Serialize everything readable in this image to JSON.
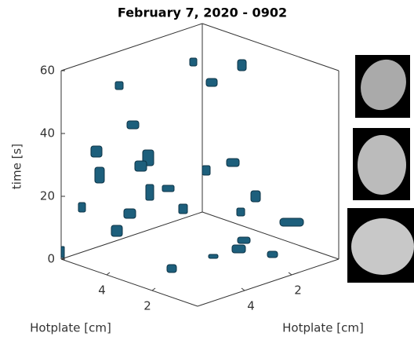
{
  "chart_data": {
    "type": "scatter3d",
    "title": "February 7, 2020 - 0902",
    "xlabel": "Hotplate [cm]",
    "ylabel": "Hotplate [cm]",
    "zlabel": "time [s]",
    "xlim": [
      0,
      6
    ],
    "xticks": [
      2,
      4
    ],
    "ylim": [
      0,
      6
    ],
    "yticks": [
      2,
      4
    ],
    "zlim": [
      0,
      60
    ],
    "zticks": [
      0,
      20,
      40,
      60
    ]
  }
}
